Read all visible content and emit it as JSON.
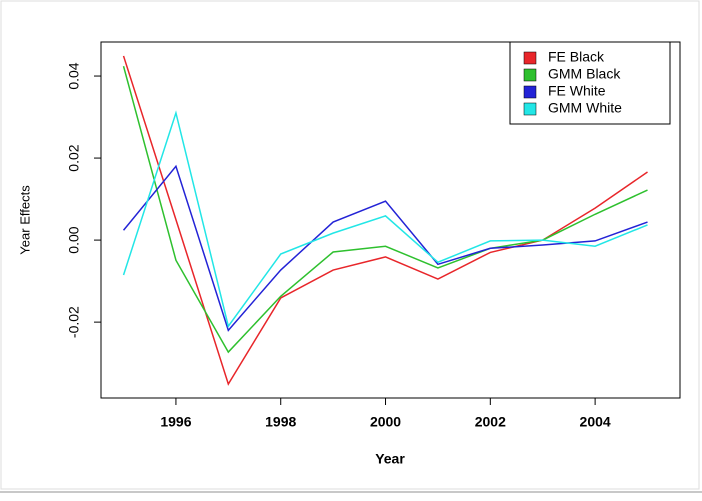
{
  "chart_data": {
    "type": "line",
    "x_label": "Year",
    "y_label": "Year Effects",
    "x": [
      1995,
      1996,
      1997,
      1998,
      1999,
      2000,
      2001,
      2002,
      2003,
      2004,
      2005
    ],
    "series": [
      {
        "name": "FE Black",
        "color": "#e8262a",
        "values": [
          0.0449,
          0.005,
          -0.0351,
          -0.0141,
          -0.0073,
          -0.0041,
          -0.0095,
          -0.003,
          0.0,
          0.0078,
          0.0166
        ]
      },
      {
        "name": "GMM Black",
        "color": "#2ec02e",
        "values": [
          0.0424,
          -0.0049,
          -0.0273,
          -0.0137,
          -0.0029,
          -0.0015,
          -0.0068,
          -0.002,
          0.0,
          0.0063,
          0.0122
        ]
      },
      {
        "name": "FE White",
        "color": "#2323d6",
        "values": [
          0.0024,
          0.018,
          -0.022,
          -0.0073,
          0.0044,
          0.0095,
          -0.0059,
          -0.002,
          -0.0012,
          -0.0002,
          0.0044
        ]
      },
      {
        "name": "GMM White",
        "color": "#22e6e6",
        "values": [
          -0.0085,
          0.031,
          -0.021,
          -0.0034,
          0.0017,
          0.0059,
          -0.0054,
          -0.0002,
          0.0,
          -0.0015,
          0.0037
        ]
      }
    ],
    "xlim": [
      1994.57,
      2005.62
    ],
    "xticks": [
      1996,
      1998,
      2000,
      2002,
      2004
    ],
    "ylim": [
      -0.0385,
      0.0483
    ],
    "yticks": [
      -0.02,
      {
        "value": 0,
        "label": "0.00"
      },
      0.02,
      0.04
    ],
    "legend": "top-right",
    "grid": false
  }
}
